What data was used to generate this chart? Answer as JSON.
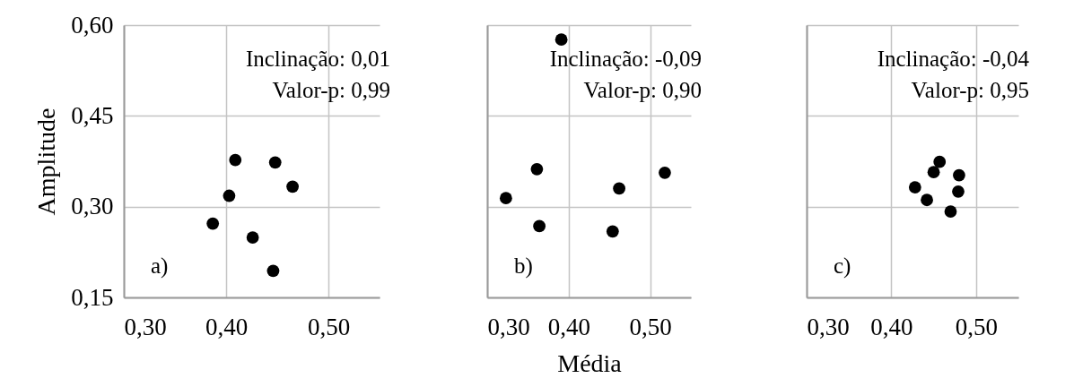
{
  "chart_data": [
    {
      "type": "scatter",
      "ylabel": "Amplitude",
      "x": [
        0.409,
        0.448,
        0.465,
        0.403,
        0.387,
        0.426,
        0.446
      ],
      "values": [
        0.377,
        0.373,
        0.333,
        0.318,
        0.272,
        0.249,
        0.194
      ],
      "color": "#000000",
      "marker": "circle",
      "grid": true,
      "xlim": [
        0.3,
        0.55
      ],
      "ylim": [
        0.15,
        0.6
      ],
      "xticks": [
        {
          "value": 0.3,
          "label": "0,30"
        },
        {
          "value": 0.4,
          "label": "0,40"
        },
        {
          "value": 0.5,
          "label": "0,50"
        }
      ],
      "yticks": [
        {
          "value": 0.15,
          "label": "0,15"
        },
        {
          "value": 0.3,
          "label": "0,30"
        },
        {
          "value": 0.45,
          "label": "0,45"
        },
        {
          "value": 0.6,
          "label": "0,60"
        }
      ],
      "annotations": [
        "Inclinação: 0,01",
        "Valor-p: 0,99",
        "a)"
      ]
    },
    {
      "type": "scatter",
      "xlabel": "Média",
      "x": [
        0.391,
        0.361,
        0.323,
        0.364,
        0.462,
        0.454,
        0.518
      ],
      "values": [
        0.576,
        0.362,
        0.314,
        0.268,
        0.33,
        0.259,
        0.356
      ],
      "color": "#000000",
      "marker": "circle",
      "grid": true,
      "xlim": [
        0.3,
        0.55
      ],
      "ylim": [
        0.15,
        0.6
      ],
      "tick_labels": "x",
      "xticks": [
        {
          "value": 0.3,
          "label": "0,30"
        },
        {
          "value": 0.4,
          "label": "0,40"
        },
        {
          "value": 0.5,
          "label": "0,50"
        }
      ],
      "yticks": [
        {
          "value": 0.15,
          "label": null
        },
        {
          "value": 0.3,
          "label": null
        },
        {
          "value": 0.45,
          "label": null
        },
        {
          "value": 0.6,
          "label": null
        }
      ],
      "annotations": [
        "Inclinação: -0,09",
        "Valor-p: 0,90",
        "b)"
      ]
    },
    {
      "type": "scatter",
      "x": [
        0.457,
        0.45,
        0.48,
        0.428,
        0.479,
        0.442,
        0.47
      ],
      "values": [
        0.374,
        0.357,
        0.352,
        0.332,
        0.325,
        0.311,
        0.292
      ],
      "color": "#000000",
      "marker": "circle",
      "grid": true,
      "xlim": [
        0.3,
        0.55
      ],
      "ylim": [
        0.15,
        0.6
      ],
      "tick_labels": "x",
      "xticks": [
        {
          "value": 0.3,
          "label": "0,30"
        },
        {
          "value": 0.4,
          "label": "0,40"
        },
        {
          "value": 0.5,
          "label": "0,50"
        }
      ],
      "yticks": [
        {
          "value": 0.15,
          "label": null
        },
        {
          "value": 0.3,
          "label": null
        },
        {
          "value": 0.45,
          "label": null
        },
        {
          "value": 0.6,
          "label": null
        }
      ],
      "annotations": [
        "Inclinação: -0,04",
        "Valor-p: 0,95",
        "c)"
      ]
    }
  ]
}
